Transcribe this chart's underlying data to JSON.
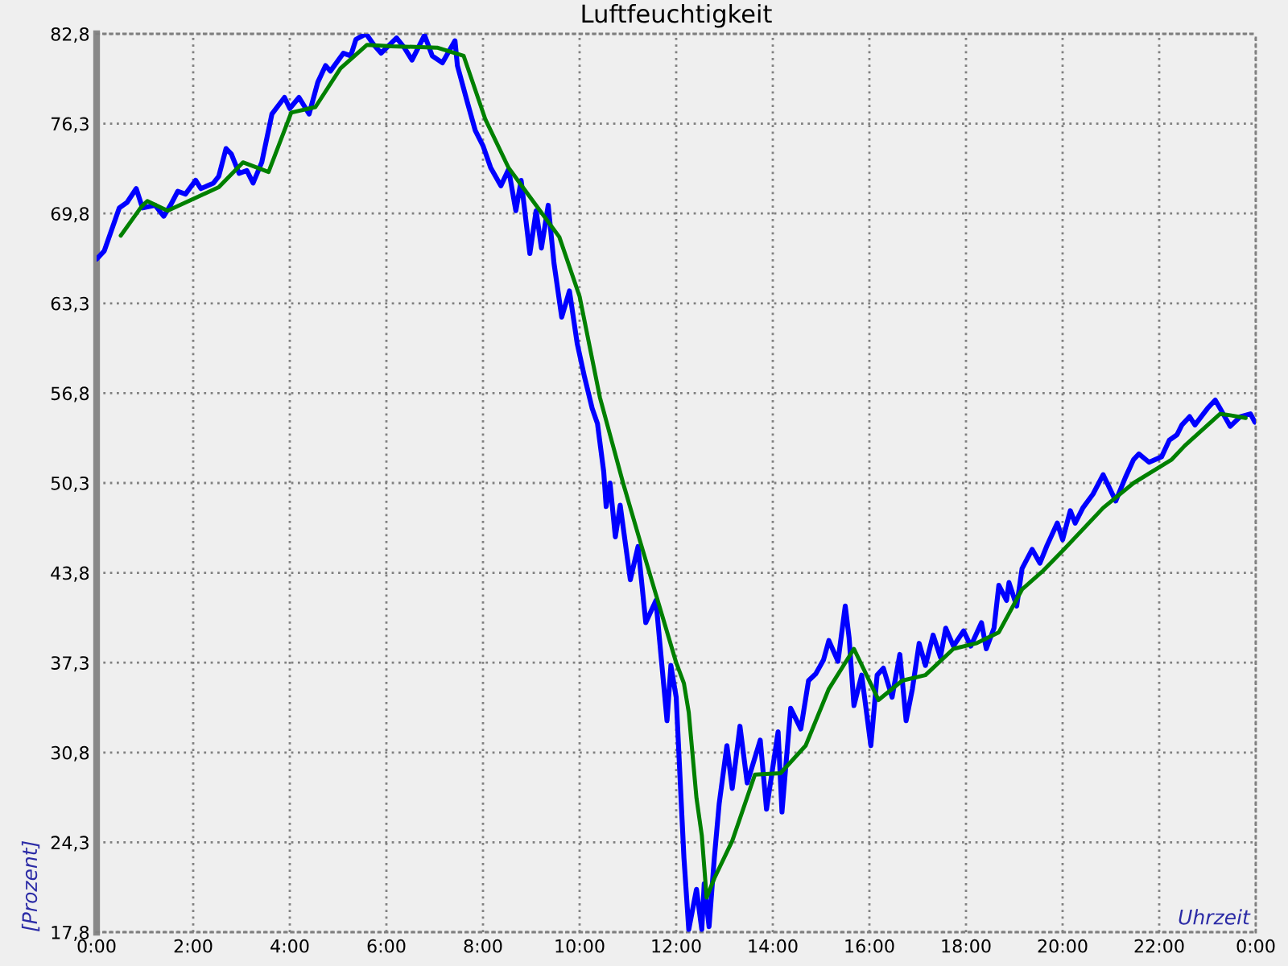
{
  "chart_data": {
    "type": "line",
    "title": "Luftfeuchtigkeit",
    "xlabel": "Uhrzeit",
    "ylabel": "[Prozent]",
    "xlim": [
      0,
      24
    ],
    "xticks": [
      {
        "value": 0,
        "label": "0:00"
      },
      {
        "value": 2,
        "label": "2:00"
      },
      {
        "value": 4,
        "label": "4:00"
      },
      {
        "value": 6,
        "label": "6:00"
      },
      {
        "value": 8,
        "label": "8:00"
      },
      {
        "value": 10,
        "label": "10:00"
      },
      {
        "value": 12,
        "label": "12:00"
      },
      {
        "value": 14,
        "label": "14:00"
      },
      {
        "value": 16,
        "label": "16:00"
      },
      {
        "value": 18,
        "label": "18:00"
      },
      {
        "value": 20,
        "label": "20:00"
      },
      {
        "value": 22,
        "label": "22:00"
      },
      {
        "value": 24,
        "label": "0:00"
      }
    ],
    "ylim": [
      17.8,
      82.8
    ],
    "yticks": [
      {
        "value": 17.8,
        "label": "17,8"
      },
      {
        "value": 24.3,
        "label": "24,3"
      },
      {
        "value": 30.8,
        "label": "30,8"
      },
      {
        "value": 37.3,
        "label": "37,3"
      },
      {
        "value": 43.8,
        "label": "43,8"
      },
      {
        "value": 50.3,
        "label": "50,3"
      },
      {
        "value": 56.8,
        "label": "56,8"
      },
      {
        "value": 63.3,
        "label": "63,3"
      },
      {
        "value": 69.8,
        "label": "69,8"
      },
      {
        "value": 76.3,
        "label": "76,3"
      },
      {
        "value": 82.8,
        "label": "82,8"
      }
    ],
    "grid": true,
    "series": [
      {
        "color": "#0000ff",
        "x": [
          0,
          0.16,
          0.32,
          0.47,
          0.63,
          0.82,
          0.95,
          1.21,
          1.39,
          1.53,
          1.68,
          1.84,
          2.05,
          2.16,
          2.42,
          2.53,
          2.68,
          2.79,
          2.95,
          3.11,
          3.24,
          3.42,
          3.63,
          3.89,
          4.0,
          4.19,
          4.4,
          4.58,
          4.74,
          4.84,
          5.11,
          5.26,
          5.37,
          5.58,
          5.74,
          5.89,
          6.21,
          6.37,
          6.53,
          6.79,
          6.95,
          7.16,
          7.42,
          7.47,
          7.68,
          7.84,
          8.0,
          8.16,
          8.37,
          8.53,
          8.68,
          8.79,
          8.97,
          9.1,
          9.21,
          9.35,
          9.47,
          9.63,
          9.79,
          9.95,
          10.1,
          10.26,
          10.37,
          10.5,
          10.55,
          10.63,
          10.74,
          10.84,
          11.05,
          11.21,
          11.37,
          11.58,
          11.81,
          11.89,
          12.0,
          12.1,
          12.16,
          12.26,
          12.42,
          12.53,
          12.58,
          12.68,
          12.79,
          12.89,
          13.05,
          13.16,
          13.32,
          13.47,
          13.74,
          13.87,
          14.11,
          14.19,
          14.37,
          14.58,
          14.74,
          14.89,
          15.05,
          15.16,
          15.35,
          15.5,
          15.58,
          15.68,
          15.84,
          16.03,
          16.16,
          16.29,
          16.47,
          16.63,
          16.76,
          16.89,
          17.03,
          17.16,
          17.32,
          17.47,
          17.58,
          17.74,
          17.95,
          18.1,
          18.32,
          18.42,
          18.58,
          18.68,
          18.84,
          18.89,
          19.05,
          19.16,
          19.37,
          19.53,
          19.68,
          19.89,
          20.0,
          20.16,
          20.26,
          20.42,
          20.63,
          20.84,
          21.1,
          21.3,
          21.47,
          21.58,
          21.79,
          22.05,
          22.21,
          22.37,
          22.47,
          22.63,
          22.74,
          23.0,
          23.16,
          23.26,
          23.47,
          23.68,
          23.89,
          23.98
        ],
        "values": [
          66.5,
          67.1,
          68.7,
          70.2,
          70.6,
          71.6,
          70.2,
          70.4,
          69.6,
          70.4,
          71.4,
          71.2,
          72.2,
          71.6,
          72.0,
          72.5,
          74.5,
          74.1,
          72.7,
          72.9,
          72.0,
          73.5,
          77.0,
          78.2,
          77.4,
          78.2,
          77.0,
          79.3,
          80.5,
          80.1,
          81.4,
          81.2,
          82.4,
          82.8,
          82.0,
          81.4,
          82.5,
          81.8,
          80.9,
          82.7,
          81.2,
          80.7,
          82.3,
          80.5,
          77.8,
          75.8,
          74.7,
          73.1,
          71.8,
          73.0,
          70.0,
          72.2,
          66.9,
          70.0,
          67.3,
          70.4,
          66.2,
          62.3,
          64.2,
          60.4,
          58.0,
          55.7,
          54.6,
          51.1,
          48.6,
          50.3,
          46.4,
          48.7,
          43.3,
          45.7,
          40.2,
          41.8,
          33.1,
          37.1,
          34.8,
          27.5,
          23.2,
          18.0,
          20.9,
          18.0,
          21.3,
          18.2,
          23.2,
          27.1,
          31.3,
          28.2,
          32.7,
          28.6,
          31.7,
          26.7,
          32.3,
          26.5,
          34.0,
          32.5,
          36.0,
          36.5,
          37.5,
          38.9,
          37.4,
          41.4,
          39.1,
          34.2,
          36.4,
          31.3,
          36.4,
          36.9,
          34.8,
          37.9,
          33.1,
          35.4,
          38.7,
          37.1,
          39.3,
          37.7,
          39.8,
          38.5,
          39.6,
          38.5,
          40.2,
          38.3,
          39.8,
          42.9,
          41.8,
          43.1,
          41.4,
          44.1,
          45.5,
          44.5,
          45.8,
          47.4,
          46.2,
          48.3,
          47.4,
          48.5,
          49.5,
          50.9,
          49.0,
          50.7,
          52.0,
          52.4,
          51.8,
          52.2,
          53.4,
          53.8,
          54.5,
          55.1,
          54.5,
          55.7,
          56.3,
          55.7,
          54.4,
          55.1,
          55.3,
          54.7
        ]
      },
      {
        "color": "#008000",
        "x": [
          0.5,
          0.93,
          1.05,
          1.47,
          2.53,
          3.03,
          3.56,
          4.03,
          4.53,
          5.05,
          5.6,
          6.1,
          7.05,
          7.6,
          8.05,
          8.53,
          9.58,
          10.0,
          10.42,
          10.9,
          11.26,
          12.0,
          12.16,
          12.26,
          12.42,
          12.53,
          12.63,
          12.79,
          13.16,
          13.63,
          14.16,
          14.68,
          15.16,
          15.68,
          16.19,
          16.68,
          17.16,
          17.74,
          18.21,
          18.68,
          19.16,
          19.58,
          20.0,
          20.84,
          21.47,
          22.26,
          22.53,
          23.26,
          23.47,
          23.79
        ],
        "values": [
          68.2,
          70.3,
          70.7,
          70.0,
          71.7,
          73.5,
          72.8,
          77.1,
          77.5,
          80.3,
          82.0,
          81.9,
          81.8,
          81.2,
          76.6,
          73.1,
          68.1,
          63.8,
          56.5,
          50.3,
          46.0,
          37.3,
          35.8,
          33.7,
          27.5,
          24.8,
          20.3,
          21.7,
          24.4,
          29.2,
          29.3,
          31.3,
          35.4,
          38.3,
          34.6,
          36.0,
          36.4,
          38.3,
          38.7,
          39.5,
          42.6,
          43.9,
          45.4,
          48.5,
          50.3,
          52.0,
          53.0,
          55.3,
          55.2,
          55.0
        ]
      }
    ]
  }
}
